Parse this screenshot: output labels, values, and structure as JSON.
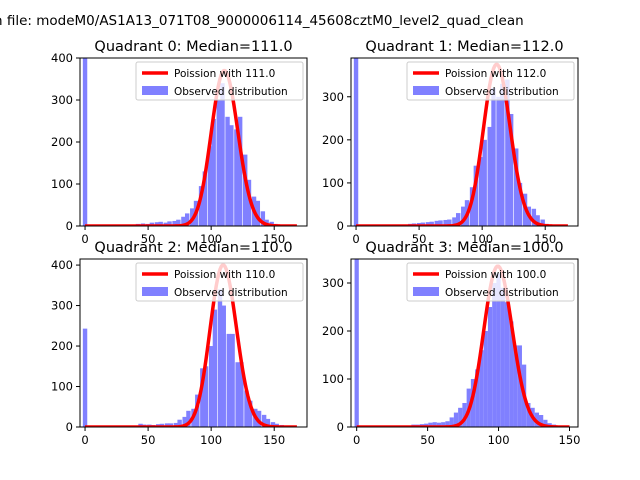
{
  "suptitle": "n file: modeM0/AS1A13_071T08_9000006114_45608cztM0_level2_quad_clean",
  "colors": {
    "hist": "#8080ff",
    "poisson": "#ff0000",
    "axes": "#000000"
  },
  "chart_data": [
    {
      "type": "bar",
      "title": "Quadrant 0: Median=111.0",
      "xlim": [
        -4,
        176
      ],
      "ylim": [
        0,
        400
      ],
      "xticks": [
        0,
        50,
        100,
        150
      ],
      "yticks": [
        0,
        100,
        200,
        300,
        400
      ],
      "legend_position": "top-right",
      "legend": [
        "Poission with 111.0",
        "Observed distribution"
      ],
      "bin_width": 3.5,
      "bins": [
        [
          0,
          400
        ],
        [
          42,
          5
        ],
        [
          46,
          6
        ],
        [
          50,
          5
        ],
        [
          53,
          8
        ],
        [
          57,
          9
        ],
        [
          60,
          10
        ],
        [
          64,
          8
        ],
        [
          67,
          11
        ],
        [
          71,
          12
        ],
        [
          74,
          15
        ],
        [
          78,
          22
        ],
        [
          81,
          30
        ],
        [
          85,
          42
        ],
        [
          88,
          60
        ],
        [
          92,
          95
        ],
        [
          95,
          130
        ],
        [
          99,
          190
        ],
        [
          102,
          255
        ],
        [
          106,
          300
        ],
        [
          109,
          340
        ],
        [
          113,
          260
        ],
        [
          116,
          240
        ],
        [
          120,
          230
        ],
        [
          123,
          260
        ],
        [
          127,
          170
        ],
        [
          130,
          110
        ],
        [
          134,
          70
        ],
        [
          137,
          60
        ],
        [
          141,
          35
        ],
        [
          144,
          15
        ],
        [
          148,
          10
        ],
        [
          151,
          5
        ],
        [
          155,
          3
        ]
      ],
      "poisson": {
        "lambda": 111,
        "amplitude": 370,
        "x_range": [
          0,
          168
        ]
      }
    },
    {
      "type": "bar",
      "title": "Quadrant 1: Median=112.0",
      "xlim": [
        -4,
        176
      ],
      "ylim": [
        0,
        390
      ],
      "xticks": [
        0,
        50,
        100,
        150
      ],
      "yticks": [
        0,
        100,
        200,
        300
      ],
      "legend_position": "top-right",
      "legend": [
        "Poission with 112.0",
        "Observed distribution"
      ],
      "bin_width": 3.5,
      "bins": [
        [
          0,
          390
        ],
        [
          43,
          5
        ],
        [
          46,
          6
        ],
        [
          50,
          7
        ],
        [
          53,
          8
        ],
        [
          57,
          9
        ],
        [
          60,
          10
        ],
        [
          64,
          12
        ],
        [
          67,
          13
        ],
        [
          71,
          14
        ],
        [
          74,
          15
        ],
        [
          78,
          20
        ],
        [
          81,
          30
        ],
        [
          85,
          45
        ],
        [
          88,
          60
        ],
        [
          92,
          90
        ],
        [
          95,
          140
        ],
        [
          99,
          160
        ],
        [
          102,
          200
        ],
        [
          106,
          230
        ],
        [
          109,
          320
        ],
        [
          113,
          300
        ],
        [
          116,
          330
        ],
        [
          120,
          340
        ],
        [
          123,
          260
        ],
        [
          127,
          180
        ],
        [
          130,
          100
        ],
        [
          134,
          75
        ],
        [
          137,
          45
        ],
        [
          141,
          40
        ],
        [
          144,
          25
        ],
        [
          148,
          15
        ],
        [
          151,
          5
        ],
        [
          155,
          3
        ]
      ],
      "poisson": {
        "lambda": 112,
        "amplitude": 375,
        "x_range": [
          0,
          168
        ]
      }
    },
    {
      "type": "bar",
      "title": "Quadrant 2: Median=110.0",
      "xlim": [
        -4,
        176
      ],
      "ylim": [
        0,
        415
      ],
      "xticks": [
        0,
        50,
        100,
        150
      ],
      "yticks": [
        0,
        100,
        200,
        300,
        400
      ],
      "legend_position": "top-right",
      "legend": [
        "Poission with 110.0",
        "Observed distribution"
      ],
      "bin_width": 3.5,
      "bins": [
        [
          0,
          243
        ],
        [
          44,
          8
        ],
        [
          47,
          6
        ],
        [
          51,
          6
        ],
        [
          54,
          5
        ],
        [
          58,
          7
        ],
        [
          61,
          8
        ],
        [
          65,
          9
        ],
        [
          68,
          9
        ],
        [
          72,
          10
        ],
        [
          75,
          18
        ],
        [
          79,
          25
        ],
        [
          82,
          40
        ],
        [
          86,
          45
        ],
        [
          89,
          80
        ],
        [
          93,
          145
        ],
        [
          96,
          150
        ],
        [
          100,
          200
        ],
        [
          103,
          290
        ],
        [
          107,
          340
        ],
        [
          110,
          300
        ],
        [
          114,
          230
        ],
        [
          117,
          230
        ],
        [
          121,
          160
        ],
        [
          124,
          160
        ],
        [
          128,
          90
        ],
        [
          131,
          65
        ],
        [
          135,
          45
        ],
        [
          138,
          40
        ],
        [
          142,
          30
        ],
        [
          145,
          20
        ],
        [
          149,
          12
        ],
        [
          152,
          8
        ],
        [
          156,
          5
        ]
      ],
      "poisson": {
        "lambda": 110,
        "amplitude": 400,
        "x_range": [
          0,
          168
        ]
      }
    },
    {
      "type": "bar",
      "title": "Quadrant 3: Median=100.0",
      "xlim": [
        -4,
        156
      ],
      "ylim": [
        0,
        350
      ],
      "xticks": [
        0,
        50,
        100,
        150
      ],
      "yticks": [
        0,
        100,
        200,
        300
      ],
      "legend_position": "top-right",
      "legend": [
        "Poission with 100.0",
        "Observed distribution"
      ],
      "bin_width": 3.0,
      "bins": [
        [
          0,
          350
        ],
        [
          40,
          5
        ],
        [
          43,
          5
        ],
        [
          46,
          6
        ],
        [
          49,
          7
        ],
        [
          52,
          9
        ],
        [
          55,
          10
        ],
        [
          58,
          9
        ],
        [
          61,
          10
        ],
        [
          64,
          12
        ],
        [
          67,
          20
        ],
        [
          70,
          30
        ],
        [
          73,
          40
        ],
        [
          76,
          50
        ],
        [
          79,
          80
        ],
        [
          82,
          100
        ],
        [
          85,
          120
        ],
        [
          88,
          160
        ],
        [
          91,
          200
        ],
        [
          94,
          250
        ],
        [
          97,
          300
        ],
        [
          100,
          320
        ],
        [
          103,
          290
        ],
        [
          106,
          260
        ],
        [
          109,
          220
        ],
        [
          112,
          170
        ],
        [
          115,
          170
        ],
        [
          118,
          130
        ],
        [
          121,
          50
        ],
        [
          124,
          40
        ],
        [
          127,
          30
        ],
        [
          130,
          25
        ],
        [
          133,
          15
        ],
        [
          136,
          8
        ],
        [
          139,
          5
        ]
      ],
      "poisson": {
        "lambda": 100,
        "amplitude": 335,
        "x_range": [
          0,
          150
        ]
      }
    }
  ]
}
